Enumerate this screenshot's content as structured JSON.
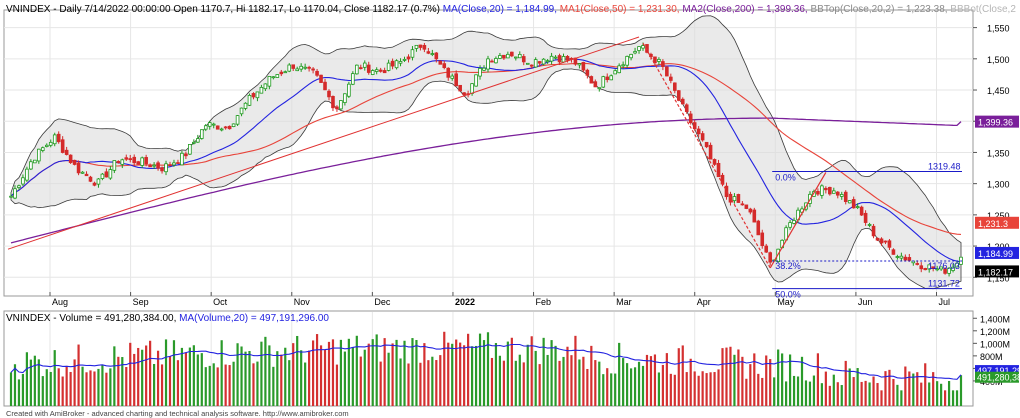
{
  "header": {
    "price": {
      "prefix": "VNINDEX - Daily 7/14/2022 00:00:00 Open 1170.7, Hi 1182.17, Lo 1170.04, Close 1182.17 (0.7%) ",
      "ma20": "MA(Close,20) = 1,184.99,",
      "ma50": " MA1(Close,50) = 1,231.30,",
      "ma200": " MA2(Close,200) = 1,399.36,",
      "bbtop": " BBTop(Close,20,2) = 1,223.38,",
      "bbbot": " BBBot(Close,2"
    },
    "volume": {
      "prefix": "VNINDEX - Volume = 491,280,384.00, ",
      "ma": "MA(Volume,20) = 497,191,296.00"
    },
    "footer": "Created with AmiBroker - advanced charting and technical analysis software. http://www.amibroker.com"
  },
  "colors": {
    "up": "#1e9a1e",
    "down": "#d42a2a",
    "ma20": "#2323e0",
    "ma50": "#e8443a",
    "ma200": "#7a1f9a",
    "band_fill": "#dcdcdc",
    "fib": "#1a1ac8",
    "trend": "#e03232",
    "grid": "#e6e6e6",
    "volume_up": "#2a9a2a",
    "volume_down": "#d43030"
  },
  "chart_data": [
    {
      "type": "candlestick",
      "title": "VNINDEX - Daily",
      "date_range": [
        "2022-07-14 (last bar)"
      ],
      "ylim": [
        1120,
        1575
      ],
      "y_ticks": [
        "1,550",
        "1,500",
        "1,450",
        "1,400",
        "1,350",
        "1,300",
        "1,250",
        "1,200",
        "1,150"
      ],
      "x_labels": [
        "Aug",
        "Sep",
        "Oct",
        "Nov",
        "Dec",
        "2022",
        "Feb",
        "Mar",
        "Apr",
        "May",
        "Jun",
        "Jul"
      ],
      "anchors": [
        {
          "label": "Aug",
          "close": 1280
        },
        {
          "label": "Aug",
          "close": 1340
        },
        {
          "label": "Aug",
          "close": 1375
        },
        {
          "label": "Aug",
          "close": 1325
        },
        {
          "label": "Sep",
          "close": 1300
        },
        {
          "label": "Sep",
          "close": 1340
        },
        {
          "label": "Sep",
          "close": 1335
        },
        {
          "label": "Sep",
          "close": 1325
        },
        {
          "label": "Oct",
          "close": 1345
        },
        {
          "label": "Oct",
          "close": 1395
        },
        {
          "label": "Oct",
          "close": 1390
        },
        {
          "label": "Nov",
          "close": 1435
        },
        {
          "label": "Nov",
          "close": 1470
        },
        {
          "label": "Nov",
          "close": 1490
        },
        {
          "label": "Nov",
          "close": 1475
        },
        {
          "label": "Dec",
          "close": 1420
        },
        {
          "label": "Dec",
          "close": 1490
        },
        {
          "label": "Dec",
          "close": 1480
        },
        {
          "label": "Dec",
          "close": 1495
        },
        {
          "label": "2022",
          "close": 1525
        },
        {
          "label": "2022",
          "close": 1480
        },
        {
          "label": "2022",
          "close": 1445
        },
        {
          "label": "Feb",
          "close": 1500
        },
        {
          "label": "Feb",
          "close": 1510
        },
        {
          "label": "Feb",
          "close": 1495
        },
        {
          "label": "Mar",
          "close": 1505
        },
        {
          "label": "Mar",
          "close": 1495
        },
        {
          "label": "Mar",
          "close": 1455
        },
        {
          "label": "Mar",
          "close": 1490
        },
        {
          "label": "Apr",
          "close": 1520
        },
        {
          "label": "Apr",
          "close": 1490
        },
        {
          "label": "Apr",
          "close": 1420
        },
        {
          "label": "Apr",
          "close": 1360
        },
        {
          "label": "May",
          "close": 1280
        },
        {
          "label": "May",
          "close": 1260
        },
        {
          "label": "May",
          "close": 1170
        },
        {
          "label": "May",
          "close": 1240
        },
        {
          "label": "Jun",
          "close": 1290
        },
        {
          "label": "Jun",
          "close": 1290
        },
        {
          "label": "Jun",
          "close": 1260
        },
        {
          "label": "Jun",
          "close": 1210
        },
        {
          "label": "Jul",
          "close": 1185
        },
        {
          "label": "Jul",
          "close": 1170
        },
        {
          "label": "Jul",
          "close": 1160
        },
        {
          "label": "Jul",
          "close": 1182.17
        }
      ],
      "last_bar": {
        "date": "7/14/2022",
        "open": 1170.7,
        "high": 1182.17,
        "low": 1170.04,
        "close": 1182.17,
        "change": "0.7%"
      },
      "indicators": {
        "ma20": {
          "name": "MA(Close,20)",
          "value": 1184.99,
          "label": "1,184.99"
        },
        "ma50": {
          "name": "MA1(Close,50)",
          "value": 1231.3,
          "label": "1,231.3"
        },
        "ma200": {
          "name": "MA2(Close,200)",
          "value": 1399.36,
          "label": "1,399.36"
        },
        "bbtop": {
          "name": "BBTop(Close,20,2)",
          "value": 1223.38
        },
        "close_label": "1,182.17"
      },
      "fibonacci": [
        {
          "level": "0.0%",
          "value": 1319.48,
          "value_label": "1319.48"
        },
        {
          "level": "38.2%",
          "value": 1176.03,
          "value_label": "1176.03"
        },
        {
          "level": "50.0%",
          "value": 1131.72,
          "value_label": "1131.72"
        }
      ]
    },
    {
      "type": "bar",
      "title": "VNINDEX - Volume",
      "ylim": [
        0,
        1500000000
      ],
      "y_ticks": [
        "1,400M",
        "1,200M",
        "1,000M",
        "800M",
        "600M",
        "400M"
      ],
      "last": {
        "volume": 491280384,
        "label": "491,280,384"
      },
      "ma20": {
        "value": 497191296,
        "label": "497,191,296"
      }
    }
  ]
}
